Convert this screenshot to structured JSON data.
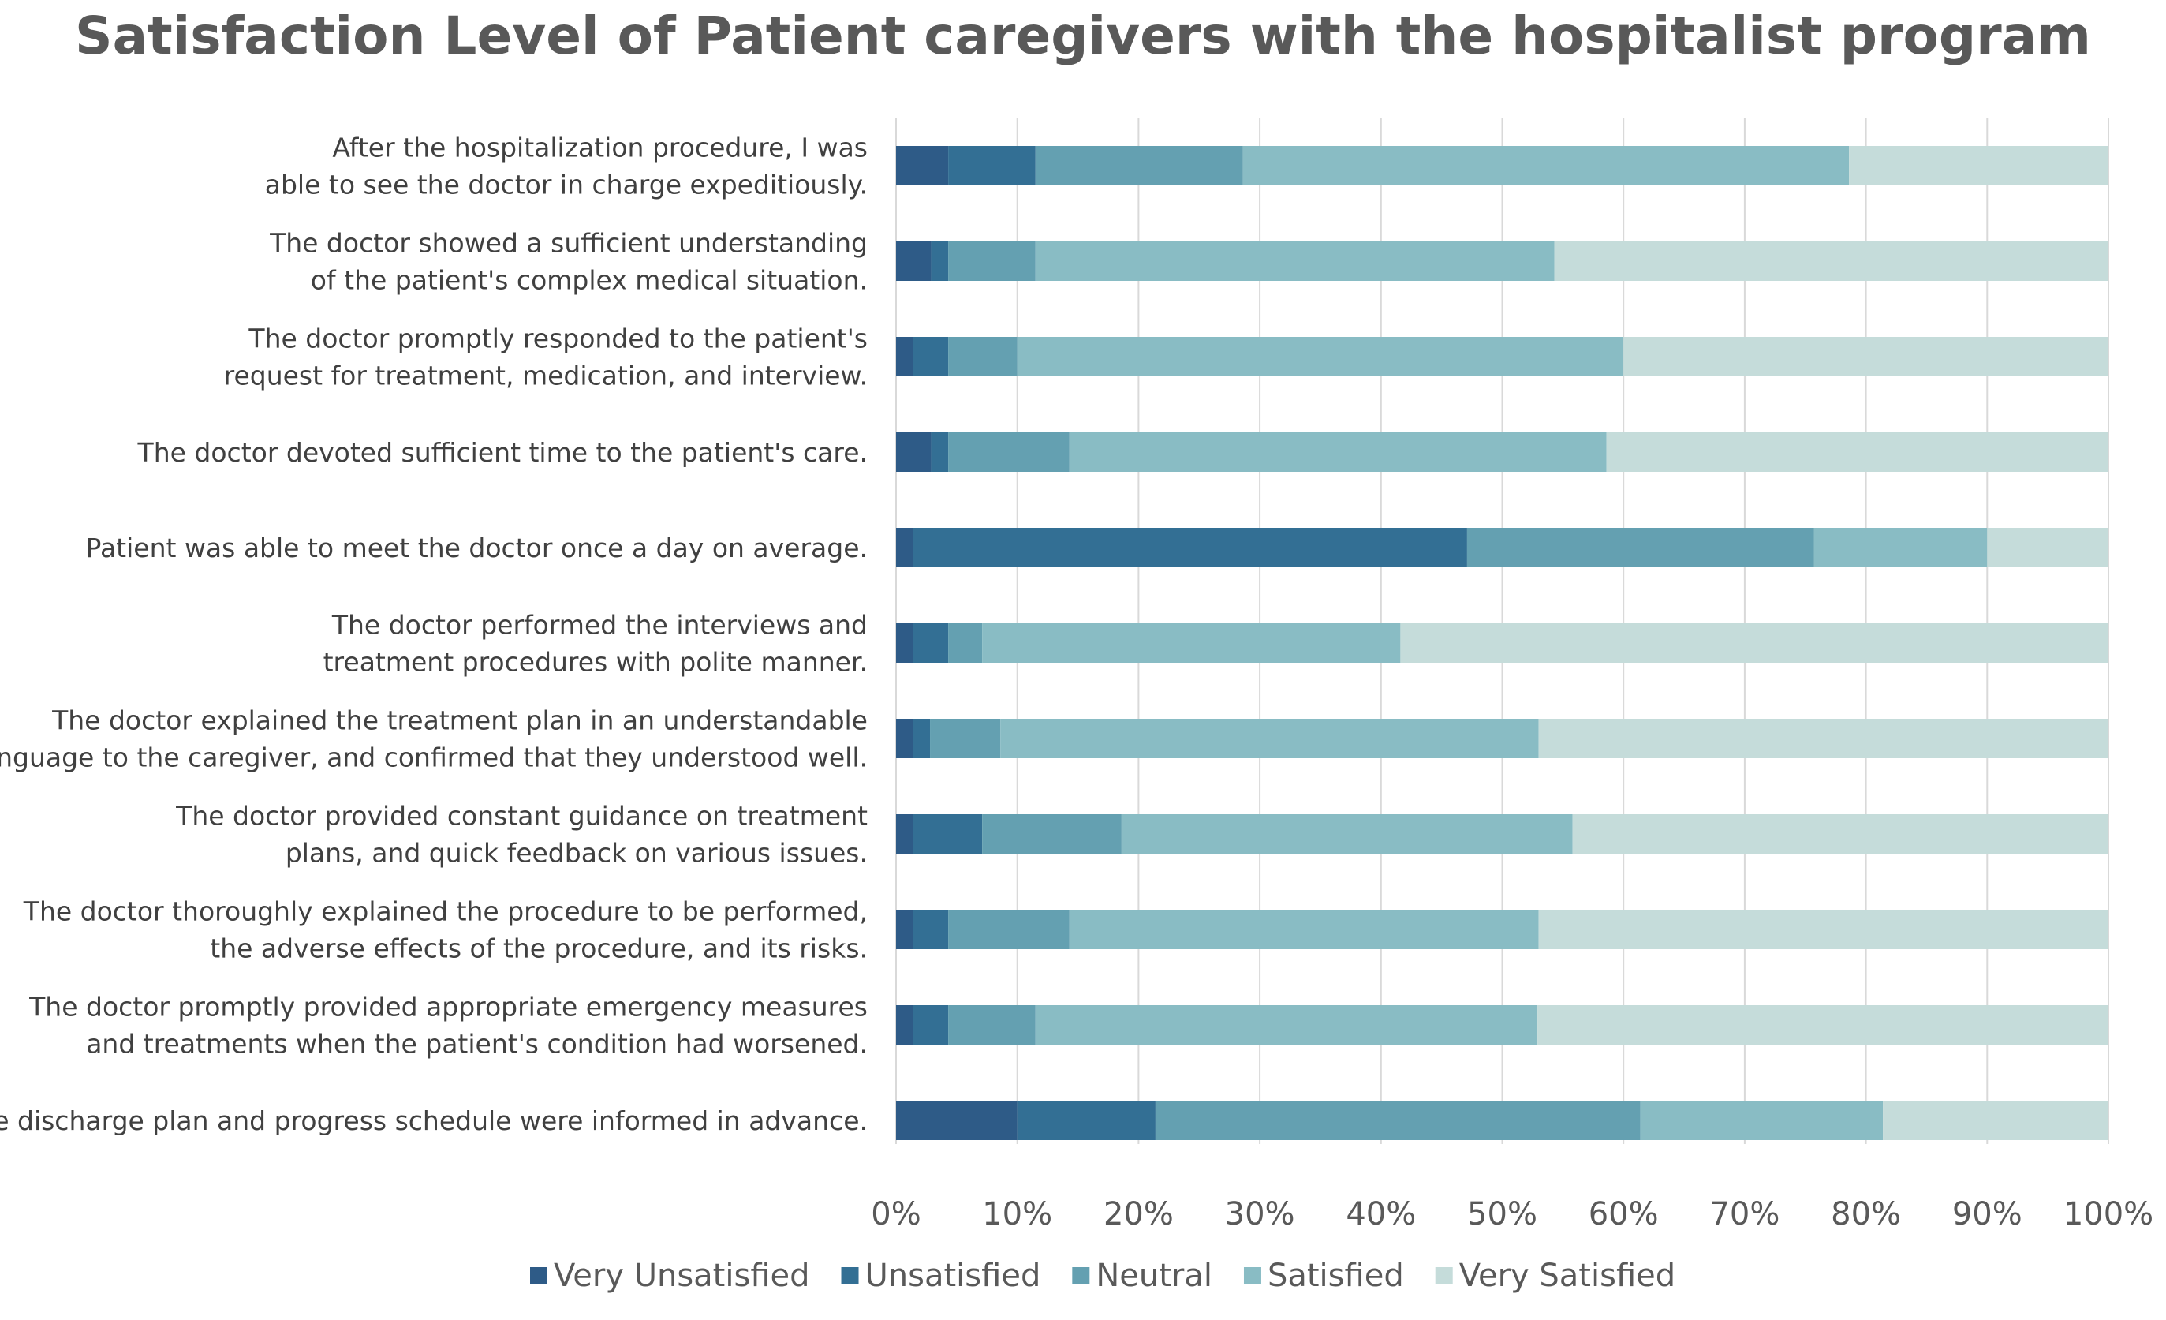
{
  "chart_data": {
    "type": "bar",
    "orientation": "horizontal",
    "stacked": "percent",
    "title": "Satisfaction Level of Patient caregivers with the hospitalist program",
    "xlabel": "",
    "ylabel": "",
    "xlim": [
      0,
      100
    ],
    "x_ticks": [
      "0%",
      "10%",
      "20%",
      "30%",
      "40%",
      "50%",
      "60%",
      "70%",
      "80%",
      "90%",
      "100%"
    ],
    "legend_position": "bottom",
    "grid": true,
    "categories": [
      [
        "After the hospitalization procedure, I was",
        "able to see the doctor in charge expeditiously."
      ],
      [
        "The doctor showed a sufficient understanding",
        "of the patient's complex medical situation."
      ],
      [
        "The doctor promptly responded to the patient's",
        "request for treatment, medication, and interview."
      ],
      [
        "The doctor devoted sufficient time to the patient's care."
      ],
      [
        "Patient was able to meet the doctor once a day on average."
      ],
      [
        "The doctor performed the interviews and",
        "treatment procedures with polite manner."
      ],
      [
        "The doctor explained the treatment plan in an understandable",
        "language to the caregiver, and confirmed that they understood well."
      ],
      [
        "The doctor provided constant guidance on treatment",
        "plans, and quick feedback on various issues."
      ],
      [
        "The doctor thoroughly explained the procedure to be performed,",
        "the adverse effects of the procedure, and its risks."
      ],
      [
        "The doctor promptly provided appropriate emergency measures",
        "and treatments when the patient's condition had worsened."
      ],
      [
        "The discharge plan and progress schedule were informed in advance."
      ]
    ],
    "series": [
      {
        "name": "Very Unsatisfied",
        "color": "#2e5b87",
        "values": [
          4.3,
          2.9,
          1.4,
          2.9,
          1.4,
          1.4,
          1.4,
          1.4,
          1.4,
          1.4,
          10.0
        ]
      },
      {
        "name": "Unsatisfied",
        "color": "#336f94",
        "values": [
          7.2,
          1.4,
          2.9,
          1.4,
          45.7,
          2.9,
          1.4,
          5.7,
          2.9,
          2.9,
          11.4
        ]
      },
      {
        "name": "Neutral",
        "color": "#64a0b1",
        "values": [
          17.1,
          7.2,
          5.7,
          10.0,
          28.6,
          2.8,
          5.8,
          11.5,
          10.0,
          7.2,
          40.0
        ]
      },
      {
        "name": "Satisfied",
        "color": "#89bcc4",
        "values": [
          50.0,
          42.8,
          50.0,
          44.3,
          14.3,
          34.5,
          44.4,
          37.2,
          38.7,
          41.4,
          20.0
        ]
      },
      {
        "name": "Very Satisfied",
        "color": "#c5dcda",
        "values": [
          21.4,
          45.7,
          40.0,
          41.4,
          10.0,
          58.4,
          47.0,
          44.2,
          47.0,
          47.1,
          18.6
        ]
      }
    ]
  }
}
